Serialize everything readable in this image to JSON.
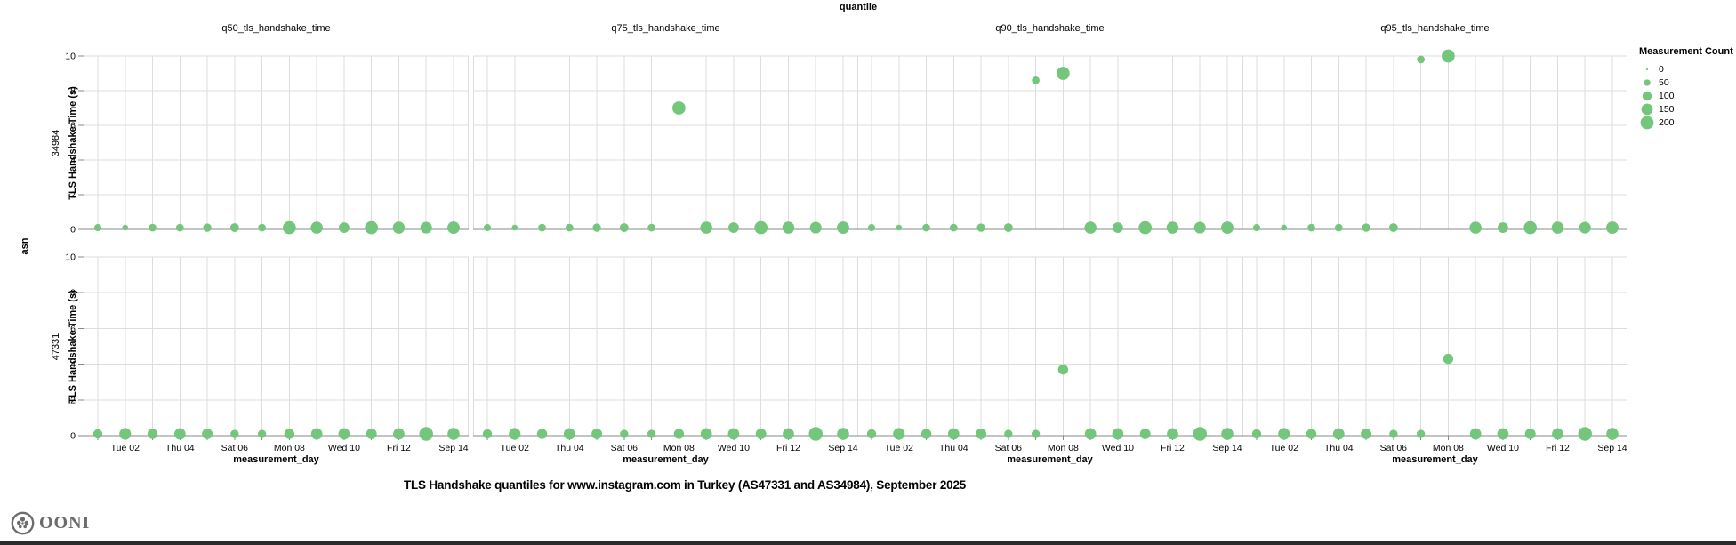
{
  "header": {
    "facet_title": "quantile",
    "column_headers": [
      "q50_tls_handshake_time",
      "q75_tls_handshake_time",
      "q90_tls_handshake_time",
      "q95_tls_handshake_time"
    ]
  },
  "left": {
    "axis_group_label": "asn",
    "row_labels": [
      "34984",
      "47331"
    ],
    "y_axis_title": "TLS Handshake Time (s)"
  },
  "legend": {
    "title": "Measurement Count",
    "sizes": [
      0,
      50,
      100,
      150,
      200
    ]
  },
  "footer": {
    "title": "TLS Handshake quantiles for www.instagram.com in Turkey (AS47331 and AS34984), September 2025",
    "logo_text": "OONI"
  },
  "colors": {
    "point": "#74c67c",
    "grid": "#dddddd",
    "axis": "#888888",
    "label": "#000000",
    "logo": "#6b6b6b"
  },
  "chart_data": {
    "type": "scatter",
    "title": "TLS Handshake quantiles for www.instagram.com in Turkey (AS47331 and AS34984), September 2025",
    "facet_column_field": "quantile",
    "facet_columns": [
      "q50_tls_handshake_time",
      "q75_tls_handshake_time",
      "q90_tls_handshake_time",
      "q95_tls_handshake_time"
    ],
    "facet_row_field": "asn",
    "facet_rows": [
      "34984",
      "47331"
    ],
    "x_title": "measurement_day",
    "x_days": [
      "Sep 01",
      "Sep 02",
      "Sep 03",
      "Sep 04",
      "Sep 05",
      "Sep 06",
      "Sep 07",
      "Sep 08",
      "Sep 09",
      "Sep 10",
      "Sep 11",
      "Sep 12",
      "Sep 13",
      "Sep 14"
    ],
    "x_tick_days": [
      2,
      4,
      6,
      8,
      10,
      12,
      14
    ],
    "x_tick_labels": [
      "Tue 02",
      "Thu 04",
      "Sat 06",
      "Mon 08",
      "Wed 10",
      "Fri 12",
      "Sep 14"
    ],
    "y_title": "TLS Handshake Time (s)",
    "ylim": [
      0,
      10
    ],
    "y_ticks": [
      0,
      2,
      4,
      6,
      8,
      10
    ],
    "grid": true,
    "legend_position": "top-right",
    "size_legend": {
      "title": "Measurement Count",
      "values": [
        0,
        50,
        100,
        150,
        200
      ]
    },
    "rows": [
      {
        "asn": "34984",
        "measurement_counts": [
          60,
          40,
          70,
          70,
          80,
          90,
          70,
          200,
          170,
          130,
          200,
          170,
          160,
          180
        ],
        "values": {
          "q50_tls_handshake_time": [
            0.1,
            0.1,
            0.1,
            0.1,
            0.1,
            0.1,
            0.1,
            0.1,
            0.1,
            0.1,
            0.1,
            0.1,
            0.1,
            0.1
          ],
          "q75_tls_handshake_time": [
            0.1,
            0.1,
            0.1,
            0.1,
            0.1,
            0.1,
            0.1,
            7.0,
            0.1,
            0.1,
            0.1,
            0.1,
            0.1,
            0.1
          ],
          "q90_tls_handshake_time": [
            0.1,
            0.1,
            0.1,
            0.1,
            0.1,
            0.1,
            8.6,
            9.0,
            0.1,
            0.1,
            0.1,
            0.1,
            0.1,
            0.1
          ],
          "q95_tls_handshake_time": [
            0.1,
            0.1,
            0.1,
            0.1,
            0.1,
            0.1,
            9.8,
            10.0,
            0.1,
            0.1,
            0.1,
            0.1,
            0.1,
            0.1
          ]
        }
      },
      {
        "asn": "47331",
        "measurement_counts": [
          100,
          160,
          120,
          150,
          130,
          80,
          80,
          120,
          150,
          150,
          130,
          150,
          220,
          170
        ],
        "values": {
          "q50_tls_handshake_time": [
            0.1,
            0.1,
            0.1,
            0.1,
            0.1,
            0.1,
            0.1,
            0.1,
            0.1,
            0.1,
            0.1,
            0.1,
            0.1,
            0.1
          ],
          "q75_tls_handshake_time": [
            0.1,
            0.1,
            0.1,
            0.1,
            0.1,
            0.1,
            0.1,
            0.1,
            0.1,
            0.1,
            0.1,
            0.1,
            0.1,
            0.1
          ],
          "q90_tls_handshake_time": [
            0.1,
            0.1,
            0.1,
            0.1,
            0.1,
            0.1,
            0.1,
            3.7,
            0.1,
            0.1,
            0.1,
            0.1,
            0.1,
            0.1
          ],
          "q95_tls_handshake_time": [
            0.1,
            0.1,
            0.1,
            0.1,
            0.1,
            0.1,
            0.1,
            4.3,
            0.1,
            0.1,
            0.1,
            0.1,
            0.1,
            0.1
          ]
        }
      }
    ]
  }
}
